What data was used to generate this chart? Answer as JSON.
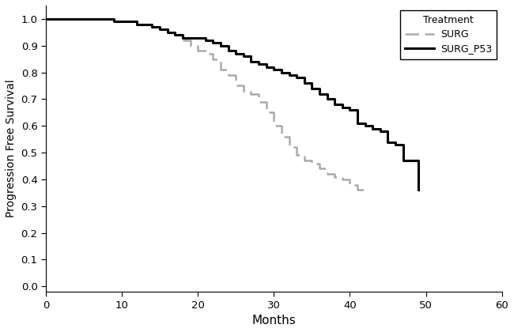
{
  "xlabel": "Months",
  "ylabel": "Progression Free Survival",
  "xlim": [
    0,
    60
  ],
  "ylim": [
    -0.02,
    1.05
  ],
  "yticks": [
    0.0,
    0.1,
    0.2,
    0.3,
    0.4,
    0.5,
    0.6,
    0.7,
    0.8,
    0.9,
    1.0
  ],
  "xticks": [
    0,
    10,
    20,
    30,
    40,
    50,
    60
  ],
  "surg_color": "#aaaaaa",
  "surg_p53_color": "#000000",
  "background_color": "#ffffff",
  "legend_title": "Treatment",
  "legend_labels": [
    "SURG",
    "SURG_P53"
  ],
  "surg_times": [
    0,
    3,
    6,
    9,
    12,
    14,
    15,
    16,
    17,
    18,
    19,
    20,
    21,
    22,
    23,
    24,
    25,
    26,
    27,
    28,
    29,
    30,
    31,
    32,
    33,
    34,
    35,
    36,
    37,
    38,
    39,
    40,
    41,
    42
  ],
  "surg_surv": [
    1.0,
    1.0,
    1.0,
    0.99,
    0.98,
    0.97,
    0.96,
    0.95,
    0.94,
    0.92,
    0.9,
    0.88,
    0.87,
    0.85,
    0.81,
    0.79,
    0.75,
    0.73,
    0.72,
    0.69,
    0.65,
    0.6,
    0.56,
    0.52,
    0.49,
    0.47,
    0.46,
    0.44,
    0.42,
    0.41,
    0.4,
    0.38,
    0.36,
    0.35
  ],
  "surg_p53_times": [
    0,
    3,
    6,
    9,
    12,
    14,
    15,
    16,
    17,
    18,
    19,
    20,
    21,
    22,
    23,
    24,
    25,
    26,
    27,
    28,
    29,
    30,
    31,
    32,
    33,
    34,
    35,
    36,
    37,
    38,
    39,
    40,
    41,
    42,
    43,
    44,
    45,
    46,
    47,
    48,
    49
  ],
  "surg_p53_surv": [
    1.0,
    1.0,
    1.0,
    0.99,
    0.98,
    0.97,
    0.96,
    0.95,
    0.94,
    0.93,
    0.93,
    0.93,
    0.92,
    0.91,
    0.9,
    0.88,
    0.87,
    0.86,
    0.84,
    0.83,
    0.82,
    0.81,
    0.8,
    0.79,
    0.78,
    0.76,
    0.74,
    0.72,
    0.7,
    0.68,
    0.67,
    0.66,
    0.61,
    0.6,
    0.59,
    0.58,
    0.54,
    0.53,
    0.47,
    0.47,
    0.36
  ]
}
